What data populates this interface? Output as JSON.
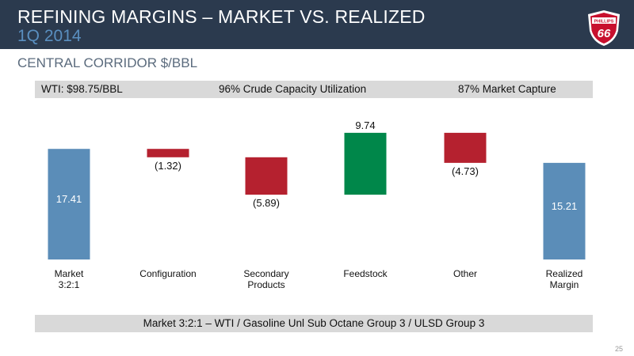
{
  "slide": {
    "title": "REFINING MARGINS – MARKET VS. REALIZED",
    "period": "1Q 2014",
    "subtitle": "CENTRAL CORRIDOR $/BBL",
    "logo_text": "PHILLIPS 66",
    "page_number": "25"
  },
  "infobar": {
    "wti": "WTI: $98.75/BBL",
    "utilization": "96% Crude Capacity Utilization",
    "capture": "87% Market Capture"
  },
  "footnote": "Market 3:2:1 – WTI / Gasoline Unl Sub Octane Group 3 / ULSD Group 3",
  "colors": {
    "total": "#5b8db8",
    "negative": "#b5212f",
    "positive": "#00874a",
    "header": "#2b3a4e"
  },
  "chart_data": {
    "type": "waterfall",
    "categories": [
      "Market\n3:2:1",
      "Configuration",
      "Secondary\nProducts",
      "Feedstock",
      "Other",
      "Realized\nMargin"
    ],
    "kinds": [
      "total",
      "delta",
      "delta",
      "delta",
      "delta",
      "total"
    ],
    "values": [
      17.41,
      -1.32,
      -5.89,
      9.74,
      -4.73,
      15.21
    ],
    "labels": [
      "17.41",
      "(1.32)",
      "(5.89)",
      "9.74",
      "(4.73)",
      "15.21"
    ]
  }
}
